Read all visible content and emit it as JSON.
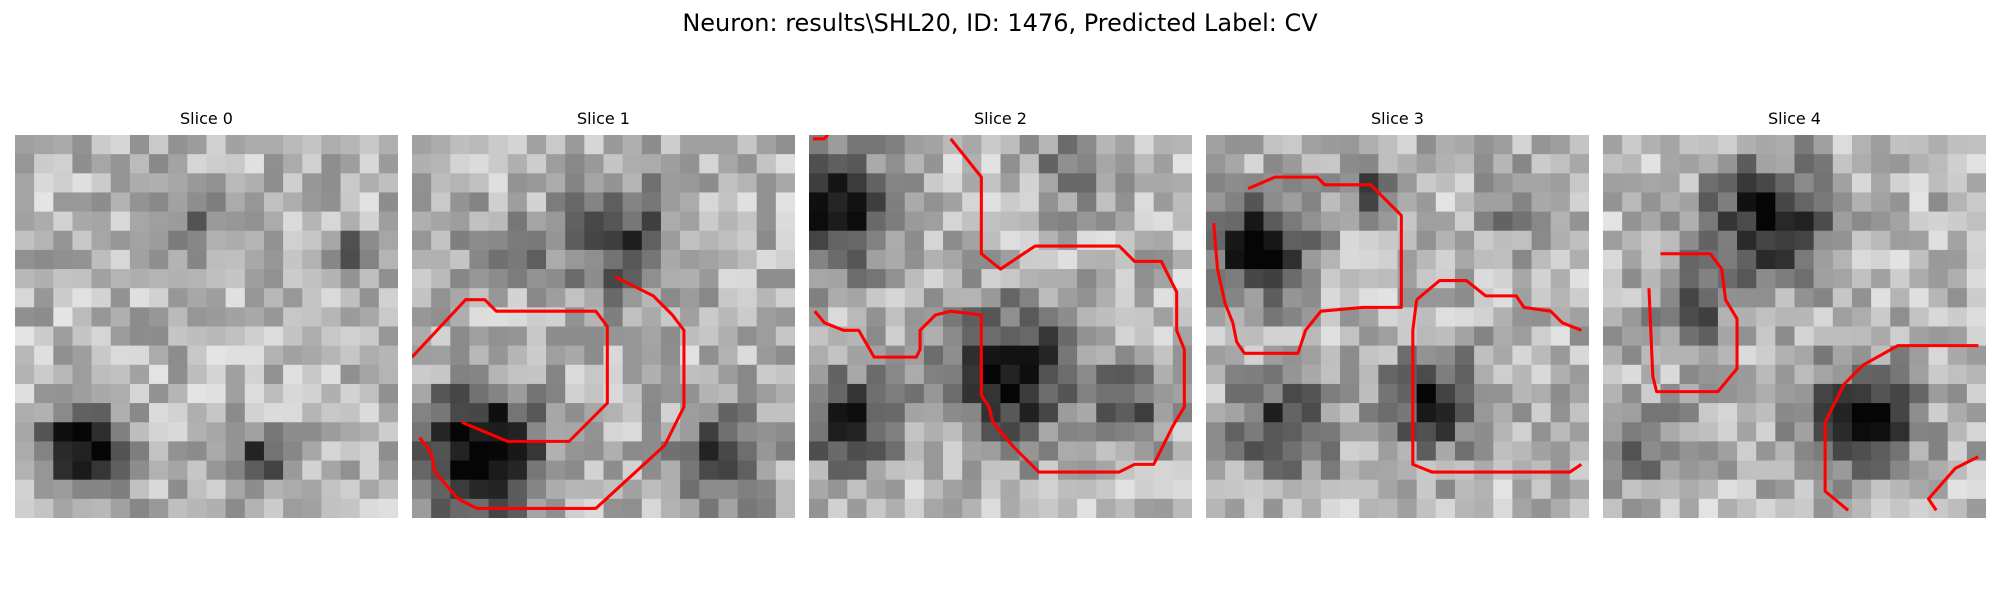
{
  "figure": {
    "title": "Neuron: results\\SHL20, ID: 1476, Predicted Label: CV",
    "contour_color": "#ff0000"
  },
  "panels": [
    {
      "title": "Slice 0",
      "seed": 11,
      "contours": []
    },
    {
      "title": "Slice 1",
      "seed": 23,
      "contours": [
        [
          [
            0,
            11.6
          ],
          [
            2.8,
            8.6
          ],
          [
            3.8,
            8.6
          ],
          [
            4.4,
            9.2
          ],
          [
            9.6,
            9.2
          ],
          [
            10.2,
            10
          ],
          [
            10.2,
            14
          ],
          [
            8.2,
            16
          ],
          [
            5,
            16
          ],
          [
            2.6,
            15
          ]
        ],
        [
          [
            0.4,
            15.8
          ],
          [
            1,
            16.6
          ],
          [
            1.2,
            17.6
          ],
          [
            2.4,
            19
          ],
          [
            3.4,
            19.5
          ],
          [
            9.6,
            19.5
          ],
          [
            13.2,
            16.2
          ],
          [
            14.2,
            14.2
          ],
          [
            14.2,
            10.2
          ],
          [
            13.6,
            9.4
          ],
          [
            12.6,
            8.4
          ],
          [
            10.6,
            7.4
          ]
        ]
      ]
    },
    {
      "title": "Slice 2",
      "seed": 37,
      "contours": [
        [
          [
            0.2,
            0.2
          ],
          [
            0.8,
            0.2
          ],
          [
            1.2,
            -0.3
          ]
        ],
        [
          [
            7.4,
            0.2
          ],
          [
            9,
            2.2
          ],
          [
            9,
            6.2
          ],
          [
            10,
            7
          ],
          [
            11.8,
            5.8
          ],
          [
            16.2,
            5.8
          ],
          [
            17,
            6.6
          ],
          [
            18.4,
            6.6
          ],
          [
            19.2,
            8.2
          ],
          [
            19.2,
            10.2
          ],
          [
            19.6,
            11.2
          ],
          [
            19.6,
            14.2
          ],
          [
            19,
            15.2
          ],
          [
            18,
            17.2
          ],
          [
            17,
            17.2
          ],
          [
            16.2,
            17.6
          ],
          [
            12,
            17.6
          ],
          [
            10.6,
            16.2
          ],
          [
            9.6,
            15
          ],
          [
            9.4,
            14.2
          ],
          [
            9,
            13.6
          ],
          [
            9,
            9.4
          ],
          [
            7.4,
            9.2
          ],
          [
            6.6,
            9.4
          ],
          [
            5.8,
            10.2
          ],
          [
            5.8,
            11.2
          ],
          [
            5.6,
            11.6
          ],
          [
            3.4,
            11.6
          ],
          [
            2.6,
            10.2
          ],
          [
            1.8,
            10.2
          ],
          [
            0.8,
            9.8
          ],
          [
            0.3,
            9.2
          ]
        ]
      ]
    },
    {
      "title": "Slice 3",
      "seed": 53,
      "contours": [
        [
          [
            2.2,
            2.8
          ],
          [
            3.6,
            2.2
          ],
          [
            5.8,
            2.2
          ],
          [
            6.2,
            2.6
          ],
          [
            8.6,
            2.6
          ],
          [
            10.2,
            4.2
          ],
          [
            10.2,
            9
          ],
          [
            8.2,
            9
          ],
          [
            6,
            9.2
          ],
          [
            5.2,
            10.2
          ],
          [
            4.8,
            11.4
          ],
          [
            2,
            11.4
          ],
          [
            1.6,
            10.8
          ],
          [
            1.4,
            9.8
          ],
          [
            1,
            8.8
          ],
          [
            0.6,
            7
          ],
          [
            0.4,
            4.6
          ]
        ],
        [
          [
            11,
            8.6
          ],
          [
            12.2,
            7.6
          ],
          [
            13.6,
            7.6
          ],
          [
            14.6,
            8.4
          ],
          [
            16.2,
            8.4
          ],
          [
            16.6,
            9
          ],
          [
            18,
            9.2
          ],
          [
            18.6,
            9.8
          ],
          [
            19.6,
            10.2
          ]
        ],
        [
          [
            11,
            8.6
          ],
          [
            10.8,
            10.2
          ],
          [
            10.8,
            17.2
          ],
          [
            11.8,
            17.6
          ],
          [
            19,
            17.6
          ],
          [
            19.6,
            17.2
          ]
        ]
      ]
    },
    {
      "title": "Slice 4",
      "seed": 71,
      "contours": [
        [
          [
            3,
            6.2
          ],
          [
            5.6,
            6.2
          ],
          [
            6.2,
            7
          ],
          [
            6.4,
            8.6
          ],
          [
            7,
            9.6
          ],
          [
            7,
            12.2
          ],
          [
            6,
            13.4
          ],
          [
            2.8,
            13.4
          ],
          [
            2.6,
            12.6
          ],
          [
            2.4,
            8
          ]
        ],
        [
          [
            11.6,
            15
          ],
          [
            12.6,
            13
          ],
          [
            13.6,
            12
          ],
          [
            15.4,
            11
          ],
          [
            19.6,
            11
          ]
        ],
        [
          [
            11.6,
            15
          ],
          [
            11.6,
            18.6
          ],
          [
            12.8,
            19.6
          ]
        ],
        [
          [
            17.4,
            19.6
          ],
          [
            17,
            19
          ],
          [
            18.4,
            17.4
          ],
          [
            19.6,
            16.8
          ]
        ]
      ]
    }
  ]
}
